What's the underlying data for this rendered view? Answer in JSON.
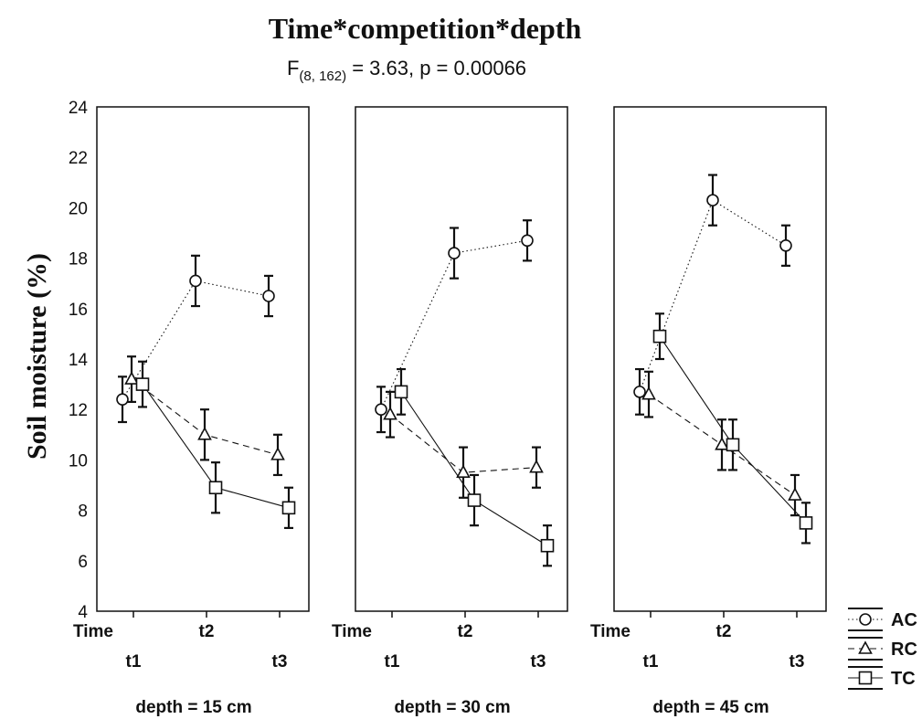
{
  "chart_data": {
    "type": "line",
    "title": "Time*competition*depth",
    "subtitle_prefix": "F",
    "subtitle_subscript": "(8, 162)",
    "subtitle_suffix": " = 3.63, p = 0.00066",
    "ylabel": "Soil moisture (%)",
    "xlabel": "Time",
    "ylim": [
      4,
      24
    ],
    "yticks": [
      "4",
      "6",
      "8",
      "10",
      "12",
      "14",
      "16",
      "18",
      "20",
      "22",
      "24"
    ],
    "categories": [
      "t1",
      "t2",
      "t3"
    ],
    "legend_position": "bottom-right",
    "panels": [
      {
        "label": "depth = 15 cm",
        "series": [
          {
            "name": "AC",
            "marker": "circle",
            "line": "dotted",
            "values": [
              12.4,
              17.1,
              16.5
            ],
            "errors": [
              0.9,
              1.0,
              0.8
            ]
          },
          {
            "name": "RC",
            "marker": "triangle",
            "line": "dashed",
            "values": [
              13.2,
              11.0,
              10.2
            ],
            "errors": [
              0.9,
              1.0,
              0.8
            ]
          },
          {
            "name": "TC",
            "marker": "square",
            "line": "solid",
            "values": [
              13.0,
              8.9,
              8.1
            ],
            "errors": [
              0.9,
              1.0,
              0.8
            ]
          }
        ]
      },
      {
        "label": "depth = 30 cm",
        "series": [
          {
            "name": "AC",
            "marker": "circle",
            "line": "dotted",
            "values": [
              12.0,
              18.2,
              18.7
            ],
            "errors": [
              0.9,
              1.0,
              0.8
            ]
          },
          {
            "name": "RC",
            "marker": "triangle",
            "line": "dashed",
            "values": [
              11.8,
              9.5,
              9.7
            ],
            "errors": [
              0.9,
              1.0,
              0.8
            ]
          },
          {
            "name": "TC",
            "marker": "square",
            "line": "solid",
            "values": [
              12.7,
              8.4,
              6.6
            ],
            "errors": [
              0.9,
              1.0,
              0.8
            ]
          }
        ]
      },
      {
        "label": "depth = 45 cm",
        "series": [
          {
            "name": "AC",
            "marker": "circle",
            "line": "dotted",
            "values": [
              12.7,
              20.3,
              18.5
            ],
            "errors": [
              0.9,
              1.0,
              0.8
            ]
          },
          {
            "name": "RC",
            "marker": "triangle",
            "line": "dashed",
            "values": [
              12.6,
              10.6,
              8.6
            ],
            "errors": [
              0.9,
              1.0,
              0.8
            ]
          },
          {
            "name": "TC",
            "marker": "square",
            "line": "solid",
            "values": [
              14.9,
              10.6,
              7.5
            ],
            "errors": [
              0.9,
              1.0,
              0.8
            ]
          }
        ]
      }
    ],
    "colors": {
      "ink": "#111111",
      "marker_fill": "#ffffff",
      "background": "#ffffff"
    }
  }
}
